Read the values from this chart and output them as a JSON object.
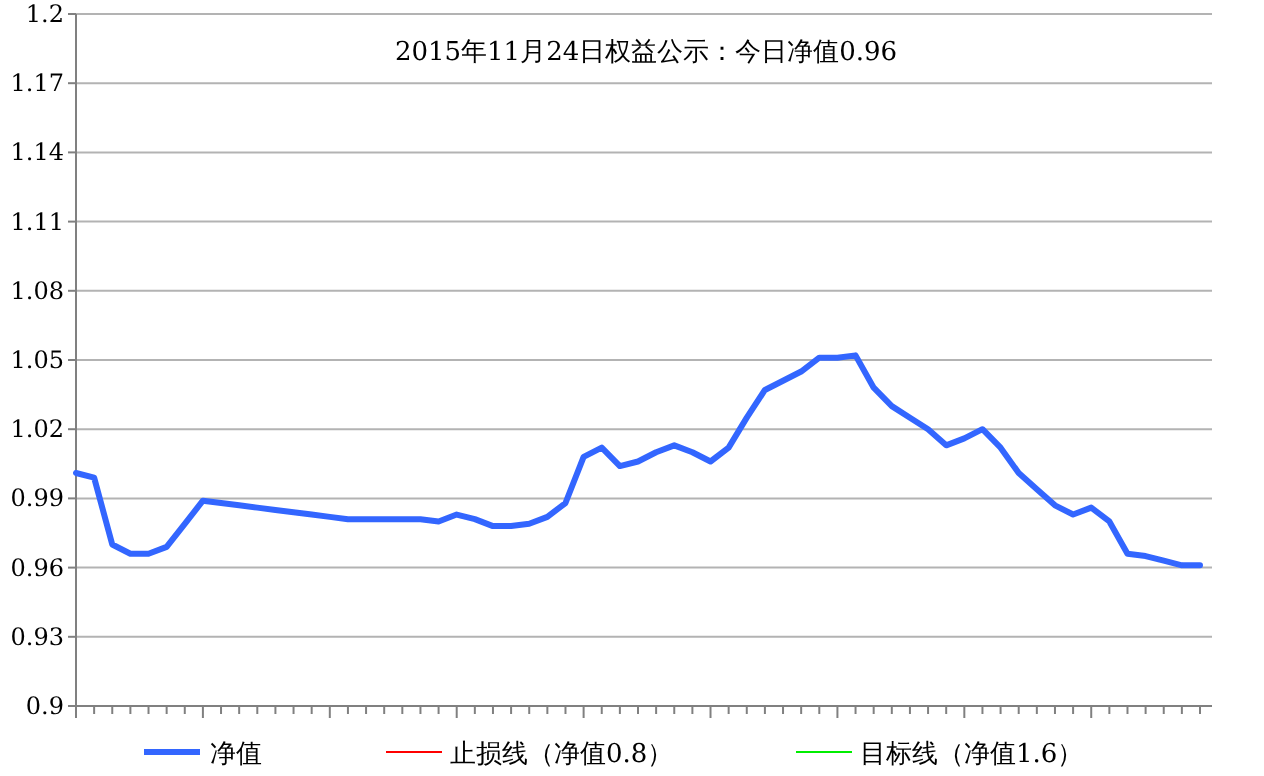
{
  "chart_data": {
    "type": "line",
    "title": "2015年11月24日权益公示：今日净值0.96",
    "categories": [
      null,
      null,
      null,
      null,
      null,
      null,
      null,
      null,
      null,
      null,
      null,
      null,
      null,
      null,
      null,
      null,
      null,
      null,
      null,
      null,
      null,
      null,
      null,
      null,
      null,
      null,
      null,
      null,
      null,
      null,
      null,
      null,
      null,
      null,
      null,
      null,
      null,
      null,
      null,
      null,
      null,
      null,
      null,
      null,
      null,
      null,
      null,
      null,
      null,
      null,
      null,
      null,
      null,
      null,
      null,
      null,
      null,
      null,
      null,
      null,
      null,
      null,
      null
    ],
    "series": [
      {
        "name": "净值",
        "color": "#3366ff",
        "values": [
          1.001,
          0.999,
          0.97,
          0.966,
          0.966,
          0.969,
          0.979,
          0.989,
          0.988,
          0.987,
          0.986,
          0.985,
          0.984,
          0.983,
          0.982,
          0.981,
          0.981,
          0.981,
          0.981,
          0.981,
          0.98,
          0.983,
          0.981,
          0.978,
          0.978,
          0.979,
          0.982,
          0.988,
          1.008,
          1.012,
          1.004,
          1.006,
          1.01,
          1.013,
          1.01,
          1.006,
          1.012,
          1.025,
          1.037,
          1.041,
          1.045,
          1.051,
          1.051,
          1.052,
          1.038,
          1.03,
          1.025,
          1.02,
          1.013,
          1.016,
          1.02,
          1.012,
          1.001,
          0.994,
          0.987,
          0.983,
          0.986,
          0.98,
          0.966,
          0.965,
          0.963,
          0.961,
          0.961
        ]
      },
      {
        "name": "止损线（净值0.8）",
        "color": "#ff0000",
        "values": [
          null,
          null,
          null,
          null,
          null,
          null,
          null,
          null,
          null,
          null,
          null,
          null,
          null,
          null,
          null,
          null,
          null,
          null,
          null,
          null,
          null,
          null,
          null,
          null,
          null,
          null,
          null,
          null,
          null,
          null,
          null,
          null,
          null,
          null,
          null,
          null,
          null,
          null,
          null,
          null,
          null,
          null,
          null,
          null,
          null,
          null,
          null,
          null,
          null,
          null,
          null,
          null,
          null,
          null,
          null,
          null,
          null,
          null,
          null,
          null,
          null,
          null,
          null
        ]
      },
      {
        "name": "目标线（净值1.6）",
        "color": "#00ee00",
        "values": [
          null,
          null,
          null,
          null,
          null,
          null,
          null,
          null,
          null,
          null,
          null,
          null,
          null,
          null,
          null,
          null,
          null,
          null,
          null,
          null,
          null,
          null,
          null,
          null,
          null,
          null,
          null,
          null,
          null,
          null,
          null,
          null,
          null,
          null,
          null,
          null,
          null,
          null,
          null,
          null,
          null,
          null,
          null,
          null,
          null,
          null,
          null,
          null,
          null,
          null,
          null,
          null,
          null,
          null,
          null,
          null,
          null,
          null,
          null,
          null,
          null,
          null,
          null
        ]
      }
    ],
    "ylim": [
      0.9,
      1.2
    ],
    "yticks": [
      0.9,
      0.93,
      0.96,
      0.99,
      1.02,
      1.05,
      1.08,
      1.11,
      1.14,
      1.17,
      1.2
    ],
    "grid": "y",
    "legend": "bottom",
    "tick_labels": "y",
    "marker": "none",
    "line_style": "solid"
  }
}
